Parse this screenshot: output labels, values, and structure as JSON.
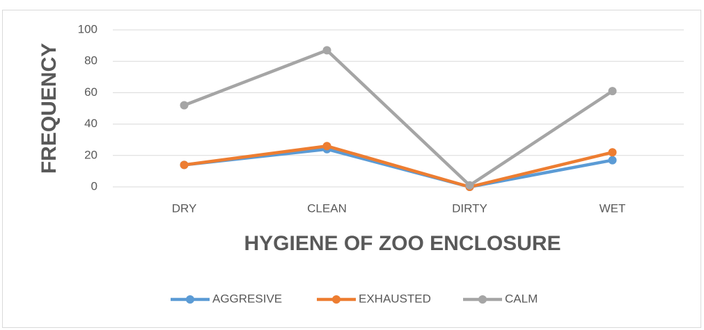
{
  "chart_data": {
    "type": "line",
    "categories": [
      "DRY",
      "CLEAN",
      "DIRTY",
      "WET"
    ],
    "series": [
      {
        "name": "AGGRESIVE",
        "color": "#5b9bd5",
        "values": [
          14,
          24,
          0,
          17
        ]
      },
      {
        "name": "EXHAUSTED",
        "color": "#ed7d31",
        "values": [
          14,
          26,
          0,
          22
        ]
      },
      {
        "name": "CALM",
        "color": "#a5a5a5",
        "values": [
          52,
          87,
          1,
          61
        ]
      }
    ],
    "xlabel": "HYGIENE OF ZOO ENCLOSURE",
    "ylabel": "FREQUENCY",
    "ylim": [
      0,
      100
    ],
    "yticks": [
      0,
      20,
      40,
      60,
      80,
      100
    ],
    "grid": true,
    "legend": "bottom"
  }
}
